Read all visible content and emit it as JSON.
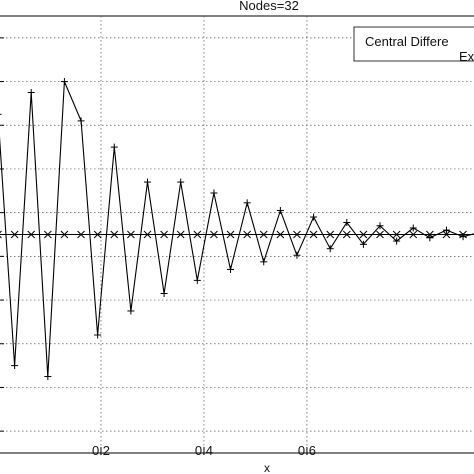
{
  "chart_data": {
    "type": "line",
    "title": "Nodes=32",
    "xlabel": "x",
    "ylabel": "",
    "xlim": [
      0.0,
      0.94
    ],
    "ylim": [
      -1.0,
      1.0
    ],
    "grid": true,
    "xticks": [
      0.2,
      0.4,
      0.6
    ],
    "xtick_labels": [
      "0.2",
      "0.4",
      "0.6"
    ],
    "yticks": [
      -0.9,
      -0.7,
      -0.5,
      -0.3,
      -0.1,
      0.1,
      0.3,
      0.5,
      0.7,
      0.9
    ],
    "legend": {
      "placement": "top-right",
      "entries": [
        "Central Differe",
        "Ex"
      ]
    },
    "series": [
      {
        "name": "Central Differe",
        "marker": "plus",
        "x": [
          0.0,
          0.0323,
          0.0645,
          0.0968,
          0.129,
          0.1613,
          0.1935,
          0.2258,
          0.2581,
          0.2903,
          0.3226,
          0.3548,
          0.3871,
          0.4194,
          0.4516,
          0.4839,
          0.5161,
          0.5484,
          0.5806,
          0.6129,
          0.6452,
          0.6774,
          0.7097,
          0.7419,
          0.7742,
          0.8065,
          0.8387,
          0.871,
          0.9032,
          0.9355
        ],
        "values": [
          0.55,
          -0.6,
          0.65,
          -0.65,
          0.7,
          0.52,
          -0.46,
          0.4,
          -0.35,
          0.24,
          -0.27,
          0.24,
          -0.21,
          0.19,
          -0.16,
          0.145,
          -0.125,
          0.11,
          -0.095,
          0.08,
          -0.065,
          0.055,
          -0.045,
          0.04,
          -0.03,
          0.03,
          -0.015,
          0.02,
          -0.01,
          0.01
        ]
      },
      {
        "name": "Ex",
        "marker": "x",
        "x": [
          0.0,
          0.0323,
          0.0645,
          0.0968,
          0.129,
          0.1613,
          0.1935,
          0.2258,
          0.2581,
          0.2903,
          0.3226,
          0.3548,
          0.3871,
          0.4194,
          0.4516,
          0.4839,
          0.5161,
          0.5484,
          0.5806,
          0.6129,
          0.6452,
          0.6774,
          0.7097,
          0.7419,
          0.7742,
          0.8065,
          0.8387,
          0.871,
          0.9032,
          0.9355
        ],
        "values": [
          0,
          0,
          0,
          0,
          0,
          0,
          0,
          0,
          0,
          0,
          0,
          0,
          0,
          0,
          0,
          0,
          0,
          0,
          0,
          0,
          0,
          0,
          0,
          0,
          0,
          0,
          0,
          0,
          0,
          0
        ]
      }
    ]
  }
}
